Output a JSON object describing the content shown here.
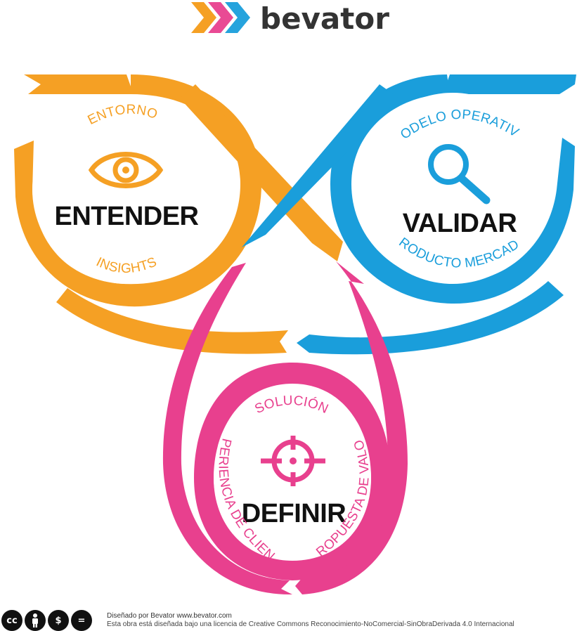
{
  "brand": {
    "name": "bevator",
    "colors": {
      "orange": "#F5A024",
      "pink": "#E8408E",
      "blue": "#1A9EDB",
      "text": "#333333"
    }
  },
  "phases": {
    "entender": {
      "title": "ENTENDER",
      "icon": "eye-icon",
      "color": "#F5A024",
      "labels": {
        "top": "ENTORNO",
        "bottom": "INSIGHTS"
      }
    },
    "validar": {
      "title": "VALIDAR",
      "icon": "magnifier-icon",
      "color": "#1A9EDB",
      "labels": {
        "top": "MODELO OPERATIVO",
        "bottom": "PRODUCTO MERCADO"
      }
    },
    "definir": {
      "title": "DEFINIR",
      "icon": "target-icon",
      "color": "#E8408E",
      "labels": {
        "top": "SOLUCIÓN",
        "left": "EXPERIENCIA DE CLIENTE",
        "right": "PROPUESTA DE VALOR"
      }
    }
  },
  "footer": {
    "license_icons": [
      "cc-icon",
      "by-icon",
      "nc-icon",
      "nd-icon"
    ],
    "license_icon_glyphs": [
      "cc",
      "",
      "$",
      "="
    ],
    "line1": "Diseñado por Bevator www.bevator.com",
    "line2": "Esta obra está diseñada bajo una licencia de Creative Commons Reconocimiento-NoComercial-SinObraDerivada 4.0 Internacional"
  }
}
